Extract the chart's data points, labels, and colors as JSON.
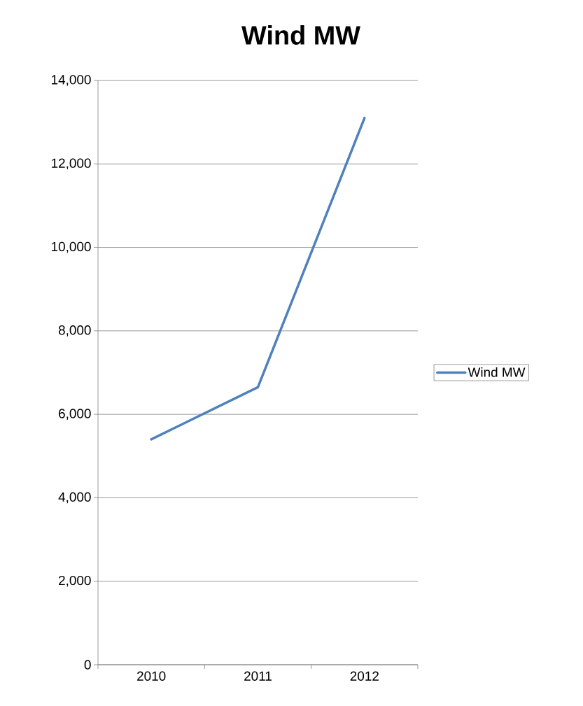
{
  "chart_data": {
    "type": "line",
    "title": "Wind MW",
    "categories": [
      "2010",
      "2011",
      "2012"
    ],
    "series": [
      {
        "name": "Wind MW",
        "color": "#4f81bd",
        "values": [
          5400,
          6650,
          13100
        ]
      }
    ],
    "ylim": [
      0,
      14000
    ],
    "yticks": [
      0,
      {
        "value": 2000,
        "label": "2,000"
      },
      {
        "value": 4000,
        "label": "4,000"
      },
      {
        "value": 6000,
        "label": "6,000"
      },
      {
        "value": 8000,
        "label": "8,000"
      },
      {
        "value": 10000,
        "label": "10,000"
      },
      {
        "value": 12000,
        "label": "12,000"
      },
      {
        "value": 14000,
        "label": "14,000"
      }
    ],
    "grid": "y",
    "legend": "right",
    "marker": "none",
    "line_style": "solid"
  }
}
